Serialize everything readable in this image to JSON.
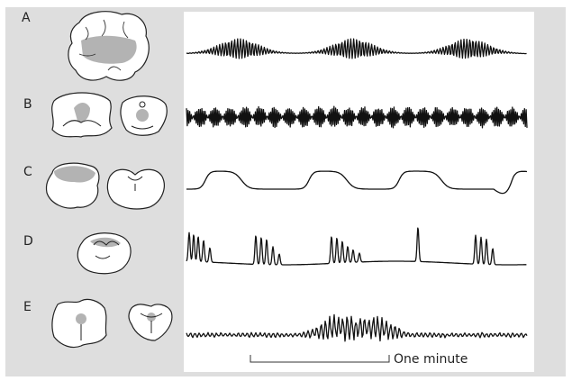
{
  "panels": [
    {
      "label": "A"
    },
    {
      "label": "B"
    },
    {
      "label": "C"
    },
    {
      "label": "D"
    },
    {
      "label": "E"
    }
  ],
  "scale_bar": {
    "label": "One minute"
  }
}
